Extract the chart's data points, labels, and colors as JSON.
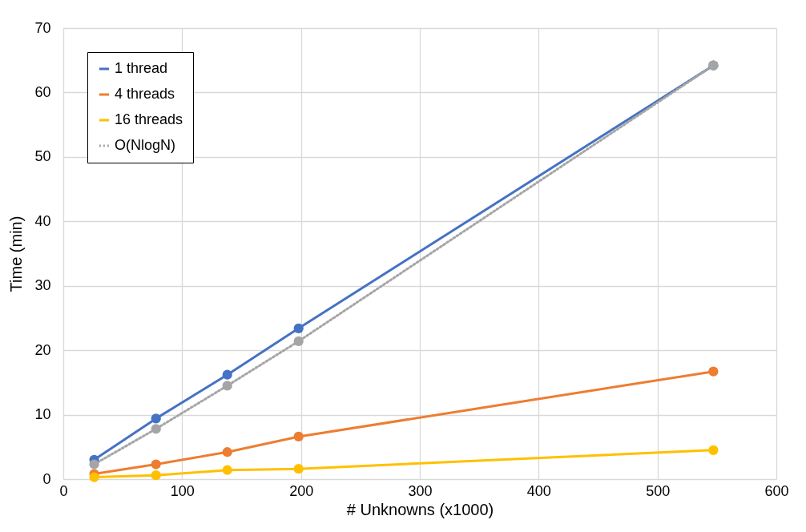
{
  "chart_data": {
    "type": "line",
    "xlabel": "# Unknowns (x1000)",
    "ylabel": "Time (min)",
    "x": [
      26,
      78,
      138,
      198,
      547
    ],
    "xlim": [
      0,
      600
    ],
    "xticks": [
      0,
      100,
      200,
      300,
      400,
      500,
      600
    ],
    "ylim": [
      0,
      70
    ],
    "yticks": [
      0,
      10,
      20,
      30,
      40,
      50,
      60,
      70
    ],
    "grid": true,
    "legend": "top left",
    "marker": "circle",
    "series": [
      {
        "name": "1 thread",
        "color": "#4472c4",
        "line_style": "solid",
        "values": [
          3.0,
          9.4,
          16.2,
          23.4,
          64.2
        ]
      },
      {
        "name": "4 threads",
        "color": "#ed7d31",
        "line_style": "solid",
        "values": [
          0.8,
          2.3,
          4.2,
          6.6,
          16.7
        ]
      },
      {
        "name": "16 threads",
        "color": "#ffc000",
        "line_style": "solid",
        "values": [
          0.3,
          0.6,
          1.4,
          1.6,
          4.5
        ]
      },
      {
        "name": "O(NlogN)",
        "color": "#a5a5a5",
        "line_style": "dotted",
        "values": [
          2.3,
          7.8,
          14.5,
          21.4,
          64.2
        ]
      }
    ]
  }
}
